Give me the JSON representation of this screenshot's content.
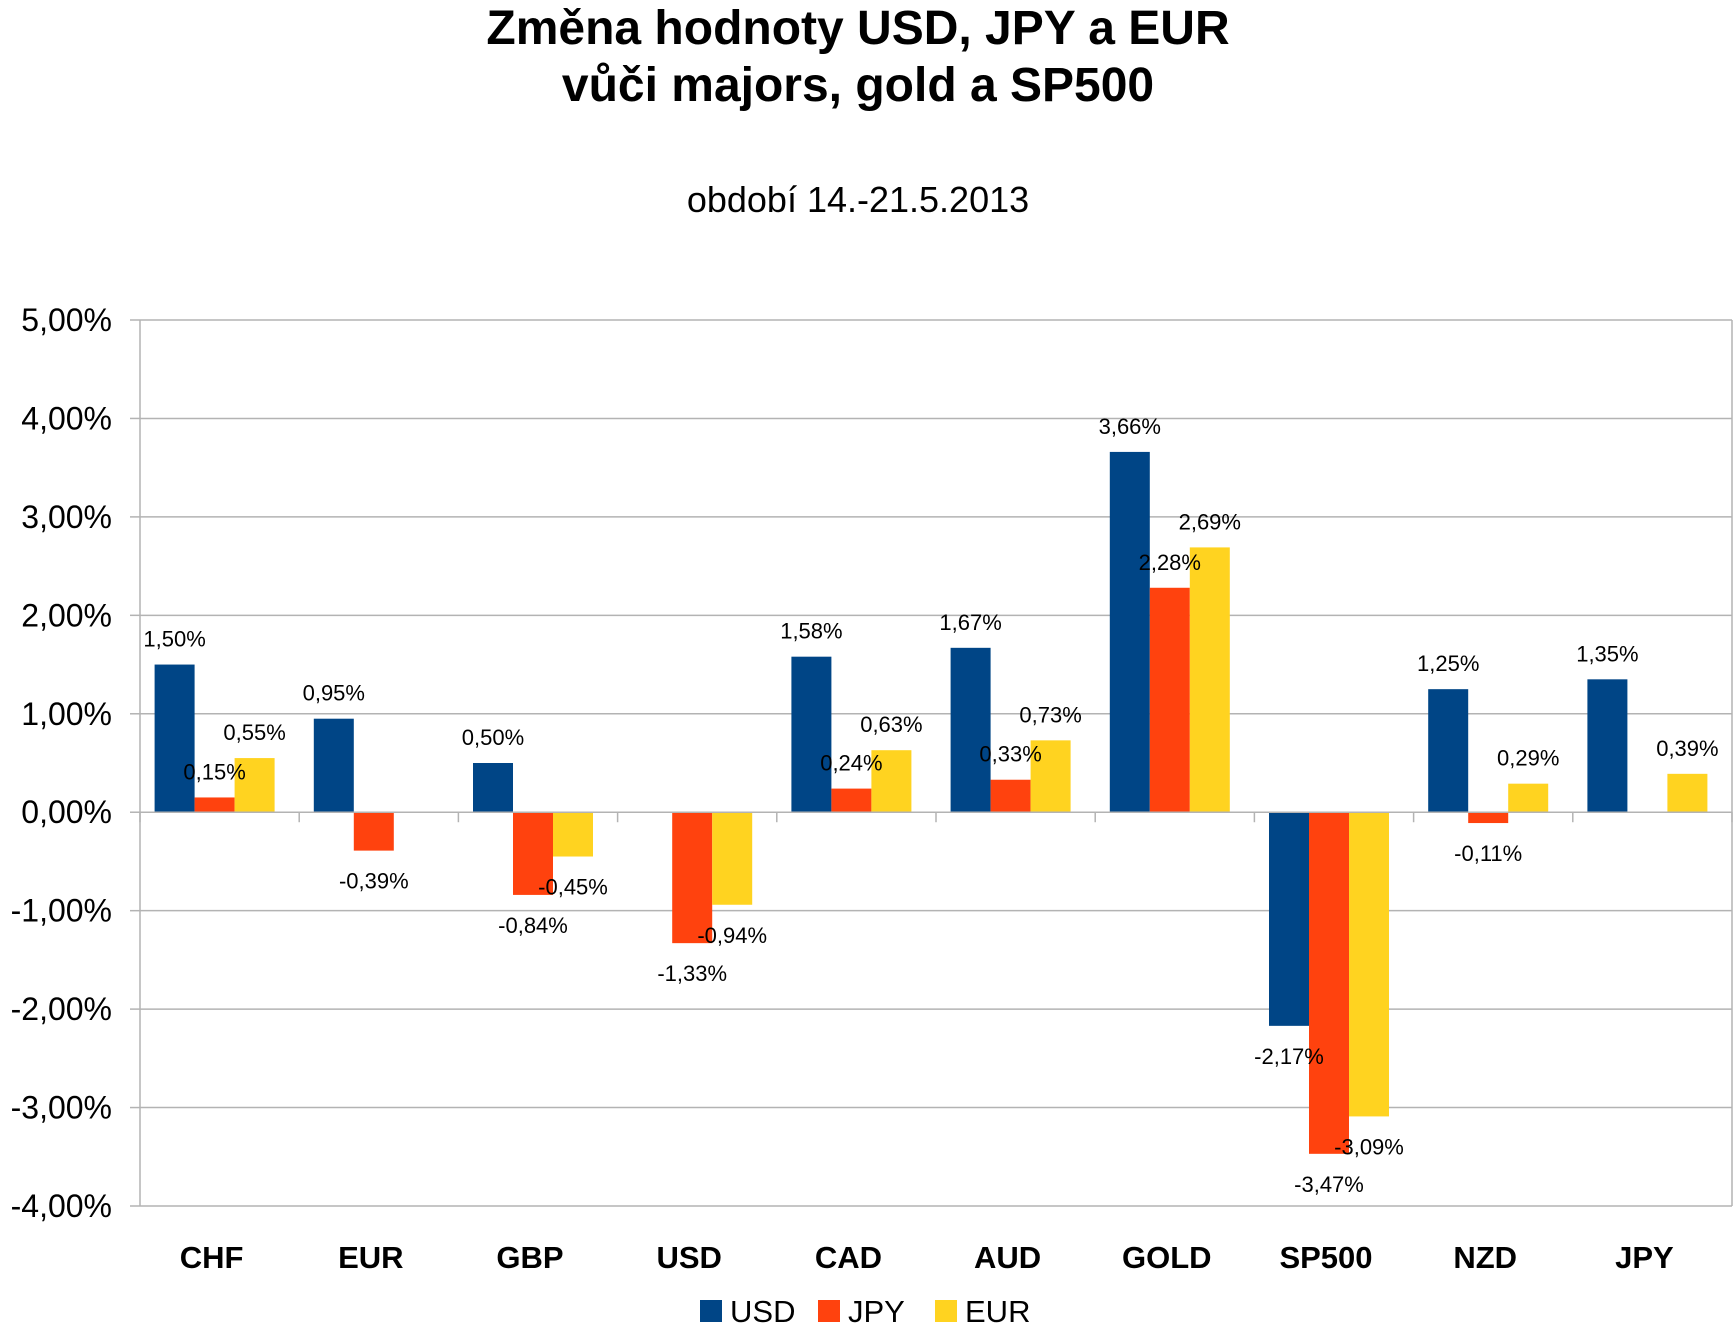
{
  "chart_data": {
    "type": "bar",
    "title_lines": [
      "Změna hodnoty USD, JPY a EUR",
      "vůči majors, gold a SP500"
    ],
    "subtitle": "období 14.-21.5.2013",
    "categories": [
      "CHF",
      "EUR",
      "GBP",
      "USD",
      "CAD",
      "AUD",
      "GOLD",
      "SP500",
      "NZD",
      "JPY"
    ],
    "series": [
      {
        "name": "USD",
        "color": "#004586",
        "values": [
          1.5,
          0.95,
          0.5,
          null,
          1.58,
          1.67,
          3.66,
          -2.17,
          1.25,
          1.35
        ],
        "labels": [
          "1,50%",
          "0,95%",
          "0,50%",
          null,
          "1,58%",
          "1,67%",
          "3,66%",
          "-2,17%",
          "1,25%",
          "1,35%"
        ]
      },
      {
        "name": "JPY",
        "color": "#ff420e",
        "values": [
          0.15,
          -0.39,
          -0.84,
          -1.33,
          0.24,
          0.33,
          2.28,
          -3.47,
          -0.11,
          null
        ],
        "labels": [
          "0,15%",
          "-0,39%",
          "-0,84%",
          "-1,33%",
          "0,24%",
          "0,33%",
          "2,28%",
          "-3,47%",
          "-0,11%",
          null
        ]
      },
      {
        "name": "EUR",
        "color": "#ffd320",
        "values": [
          0.55,
          null,
          -0.45,
          -0.94,
          0.63,
          0.73,
          2.69,
          -3.09,
          0.29,
          0.39
        ],
        "labels": [
          "0,55%",
          null,
          "-0,45%",
          "-0,94%",
          "0,63%",
          "0,73%",
          "2,69%",
          "-3,09%",
          "0,29%",
          "0,39%"
        ]
      }
    ],
    "ylim": [
      -4,
      5
    ],
    "yticks": [
      5,
      4,
      3,
      2,
      1,
      0,
      -1,
      -2,
      -3,
      -4
    ],
    "ytick_labels": [
      "5,00%",
      "4,00%",
      "3,00%",
      "2,00%",
      "1,00%",
      "0,00%",
      "-1,00%",
      "-2,00%",
      "-3,00%",
      "-4,00%"
    ],
    "xlabel": "",
    "ylabel": "",
    "grid": true,
    "legend": "bottom"
  }
}
